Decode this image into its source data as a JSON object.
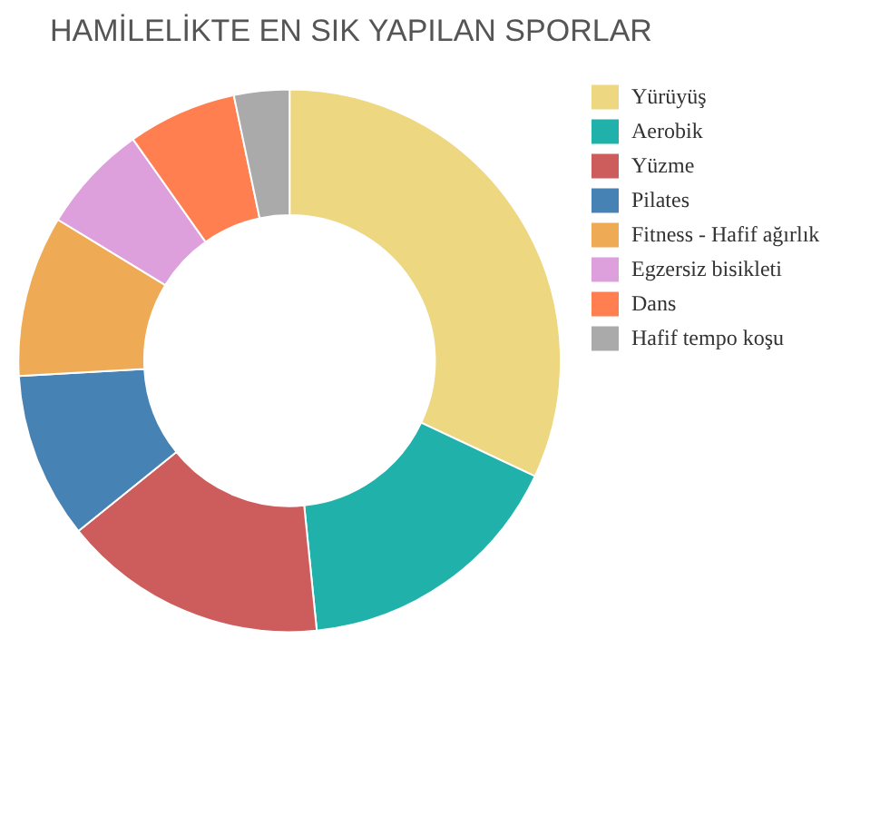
{
  "chart_data": {
    "type": "donut",
    "title": "HAMİLELİKTE EN SIK YAPILAN SPORLAR",
    "categories": [
      "Yürüyüş",
      "Aerobik",
      "Yüzme",
      "Pilates",
      "Fitness - Hafif ağırlık",
      "Egzersiz bisikleti",
      "Dans",
      "Hafif tempo koşu"
    ],
    "values": [
      32,
      16.4,
      15.8,
      9.9,
      9.6,
      6.5,
      6.5,
      3.3
    ],
    "colors": [
      "#edd780",
      "#20b2aa",
      "#cd5c5c",
      "#4682b4",
      "#eeaa55",
      "#dda0dd",
      "#ff7f50",
      "#aaaaaa"
    ],
    "legend": "right"
  }
}
